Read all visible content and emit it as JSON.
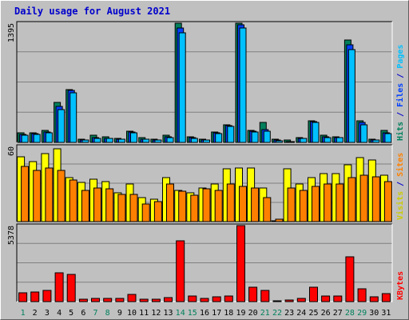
{
  "chart_data": {
    "type": "bar",
    "title": "Daily usage for August 2021",
    "categories": [
      "1",
      "2",
      "3",
      "4",
      "5",
      "6",
      "7",
      "8",
      "9",
      "10",
      "11",
      "12",
      "13",
      "14",
      "15",
      "16",
      "17",
      "18",
      "19",
      "20",
      "21",
      "22",
      "23",
      "24",
      "25",
      "26",
      "27",
      "28",
      "29",
      "30",
      "31"
    ],
    "weekend_days": [
      "1",
      "7",
      "8",
      "14",
      "15",
      "21",
      "22",
      "28",
      "29"
    ],
    "panels": [
      {
        "name": "hits-files-pages",
        "ymax_label": "1395",
        "ymax": 1395,
        "right_labels": [
          {
            "text": "Hits",
            "color": "#00805c"
          },
          {
            "text": " / ",
            "color": "#0000cc"
          },
          {
            "text": "Files",
            "color": "#0040ff"
          },
          {
            "text": " / ",
            "color": "#0000cc"
          },
          {
            "text": "Pages",
            "color": "#00c0ff"
          }
        ],
        "series": [
          {
            "name": "Hits",
            "color": "#00805c",
            "values": [
              110,
              110,
              140,
              470,
              620,
              40,
              80,
              70,
              50,
              130,
              60,
              40,
              80,
              1395,
              70,
              40,
              120,
              210,
              1395,
              140,
              230,
              40,
              30,
              60,
              250,
              80,
              70,
              1195,
              250,
              40,
              140
            ]
          },
          {
            "name": "Files",
            "color": "#0040ff",
            "values": [
              90,
              100,
              120,
              420,
              610,
              30,
              60,
              50,
              40,
              120,
              40,
              30,
              70,
              1335,
              60,
              30,
              110,
              200,
              1375,
              130,
              150,
              30,
              10,
              50,
              240,
              70,
              60,
              1145,
              230,
              30,
              110
            ]
          },
          {
            "name": "Pages",
            "color": "#00c0ff",
            "values": [
              80,
              90,
              110,
              380,
              580,
              30,
              50,
              50,
              40,
              110,
              40,
              30,
              60,
              1285,
              50,
              30,
              100,
              190,
              1335,
              120,
              130,
              20,
              10,
              50,
              230,
              60,
              60,
              1085,
              210,
              30,
              100
            ]
          }
        ]
      },
      {
        "name": "visits-sites",
        "ymax_label": "60",
        "ymax": 60,
        "right_labels": [
          {
            "text": "Visits",
            "color": "#cccc00"
          },
          {
            "text": " / ",
            "color": "#0000cc"
          },
          {
            "text": "Sites",
            "color": "#ff8000"
          }
        ],
        "series": [
          {
            "name": "Visits",
            "color": "#ffff00",
            "values": [
              52,
              48,
              54,
              58,
              35,
              31,
              34,
              32,
              23,
              30,
              19,
              18,
              35,
              25,
              23,
              27,
              30,
              42,
              43,
              43,
              27,
              0,
              42,
              30,
              35,
              38,
              38,
              45,
              51,
              49,
              37
            ]
          },
          {
            "name": "Sites",
            "color": "#ff8000",
            "values": [
              44,
              41,
              43,
              41,
              33,
              25,
              27,
              26,
              22,
              22,
              14,
              16,
              30,
              24,
              21,
              26,
              25,
              30,
              28,
              27,
              19,
              2,
              27,
              25,
              28,
              30,
              30,
              35,
              37,
              36,
              32
            ]
          }
        ]
      },
      {
        "name": "kbytes",
        "ymax_label": "5378",
        "ymax": 5378,
        "right_labels": [
          {
            "text": "KBytes",
            "color": "#ff0000"
          }
        ],
        "series": [
          {
            "name": "KBytes",
            "color": "#ff0000",
            "values": [
              620,
              660,
              780,
              2050,
              1950,
              180,
              250,
              230,
              200,
              520,
              170,
              160,
              290,
              4300,
              380,
              240,
              360,
              380,
              5378,
              1000,
              820,
              80,
              120,
              230,
              1000,
              390,
              380,
              3150,
              890,
              330,
              590
            ]
          }
        ]
      }
    ]
  }
}
